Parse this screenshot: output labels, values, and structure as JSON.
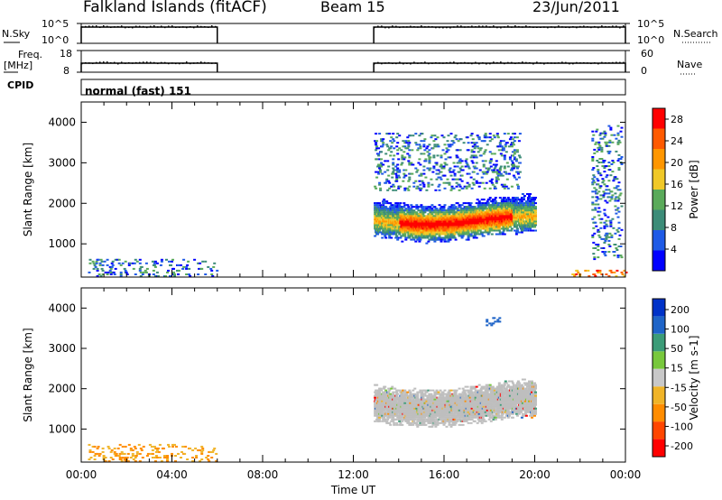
{
  "header": {
    "station": "Falkland Islands (fitACF)",
    "beam": "Beam 15",
    "date": "23/Jun/2011"
  },
  "panels": {
    "nsky": {
      "label": "N.Sky",
      "ticks": [
        "10^5",
        "10^0"
      ]
    },
    "nsearch": {
      "label": "N.Search",
      "ticks": [
        "10^5",
        "10^0"
      ]
    },
    "freq": {
      "label_top": "Freq.",
      "label_unit": "[MHz]",
      "ticks": [
        "18",
        "8"
      ]
    },
    "nave": {
      "label": "Nave",
      "ticks": [
        "60",
        "0"
      ]
    },
    "cpid": {
      "label": "CPID",
      "value": "normal (fast) 151"
    }
  },
  "colors": {
    "frame": "#000000",
    "background": "#ffffff",
    "ground_scatter": "#bebebe",
    "power_scale": [
      "#0000ff",
      "#1e5ae6",
      "#3c8c78",
      "#5aaa5a",
      "#f0c828",
      "#ff9600",
      "#ff5a00",
      "#ff0000"
    ],
    "velocity_scale": [
      "#ff0000",
      "#ff4600",
      "#ff8c00",
      "#f0b428",
      "#c8c8c8",
      "#78c83c",
      "#3c9c78",
      "#1e64c8",
      "#0032c8"
    ]
  },
  "chart_data": [
    {
      "type": "heatmap",
      "title": "Power",
      "xlabel": "Time UT",
      "ylabel": "Slant Range [km]",
      "x_ticks": [
        "00:00",
        "04:00",
        "08:00",
        "12:00",
        "16:00",
        "20:00",
        "00:00"
      ],
      "x_range_hours": [
        0,
        24
      ],
      "ylim": [
        180,
        4500
      ],
      "y_ticks": [
        1000,
        2000,
        3000,
        4000
      ],
      "colorbar": {
        "label": "Power [dB]",
        "ticks": [
          4,
          8,
          12,
          16,
          20,
          24,
          28
        ],
        "range": [
          0,
          30
        ]
      },
      "echo_regions": [
        {
          "t_start": 12.9,
          "t_end": 20.0,
          "r_min": 900,
          "r_max": 2300,
          "description": "main scatter band, strongest 14-19 UT near 1300-1700 km"
        },
        {
          "t_start": 12.9,
          "t_end": 19.3,
          "r_min": 2300,
          "r_max": 3700,
          "description": "sparse weak echoes"
        },
        {
          "t_start": 0.3,
          "t_end": 6.0,
          "r_min": 180,
          "r_max": 600,
          "description": "sparse near-range echoes"
        },
        {
          "t_start": 21.3,
          "t_end": 24.0,
          "r_min": 180,
          "r_max": 350,
          "description": "near-range echoes, high power"
        },
        {
          "t_start": 22.5,
          "t_end": 23.8,
          "r_min": 600,
          "r_max": 3900,
          "description": "scattered echoes"
        }
      ],
      "data_gaps": [
        {
          "t_start": 6.0,
          "t_end": 12.9
        }
      ]
    },
    {
      "type": "heatmap",
      "title": "Velocity",
      "xlabel": "Time UT",
      "ylabel": "Slant Range [km]",
      "x_ticks": [
        "00:00",
        "04:00",
        "08:00",
        "12:00",
        "16:00",
        "20:00",
        "00:00"
      ],
      "x_range_hours": [
        0,
        24
      ],
      "ylim": [
        180,
        4500
      ],
      "y_ticks": [
        1000,
        2000,
        3000,
        4000
      ],
      "colorbar": {
        "label": "Velocity [m s-1]",
        "ticks": [
          "200",
          "100",
          "50",
          "15",
          "-15",
          "-50",
          "-100",
          "-200"
        ],
        "range": [
          -250,
          250
        ]
      },
      "echo_regions": [
        {
          "t_start": 12.9,
          "t_end": 20.0,
          "r_min": 900,
          "r_max": 2300,
          "description": "ground scatter (grey), near-zero velocity"
        },
        {
          "t_start": 0.3,
          "t_end": 6.0,
          "r_min": 180,
          "r_max": 600,
          "description": "sparse, -15 to -50 m/s"
        },
        {
          "t_start": 17.8,
          "t_end": 18.4,
          "r_min": 3550,
          "r_max": 3750,
          "description": "positive velocity (blue)"
        }
      ],
      "data_gaps": [
        {
          "t_start": 6.0,
          "t_end": 12.9
        }
      ]
    }
  ]
}
